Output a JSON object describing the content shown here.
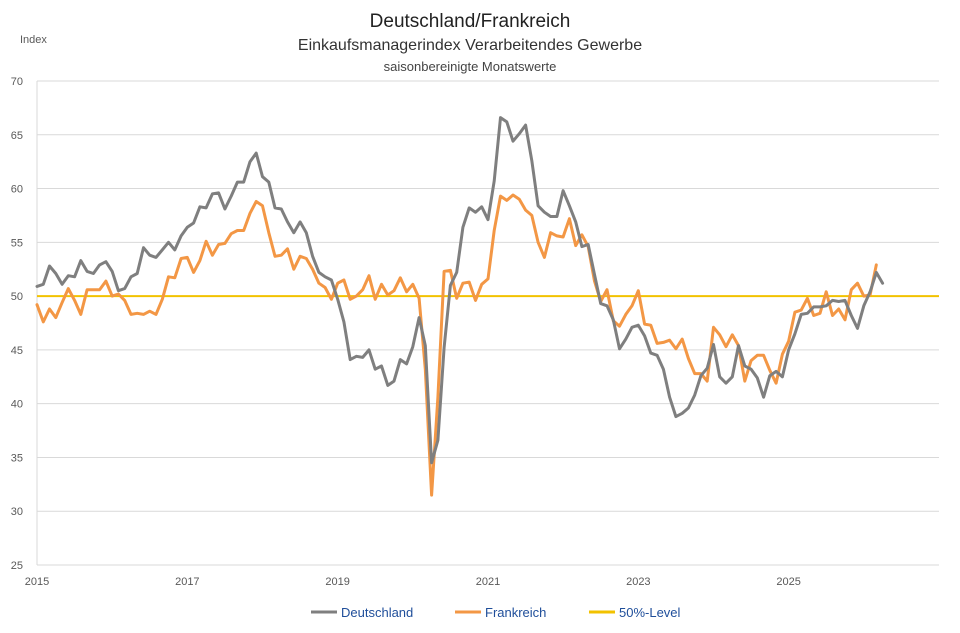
{
  "chart_data": {
    "type": "line",
    "title": "Deutschland/Frankreich",
    "subtitle": "Einkaufsmanagerindex Verarbeitendes Gewerbe",
    "note": "saisonbereinigte Monatswerte",
    "ylabel": "Index",
    "xlabel": "",
    "ylim": [
      25,
      70
    ],
    "yticks": [
      25,
      30,
      35,
      40,
      45,
      50,
      55,
      60,
      65,
      70
    ],
    "xlim": [
      2015.0,
      2027.0
    ],
    "xticks": [
      2015,
      2017,
      2019,
      2021,
      2023,
      2025
    ],
    "xtick_labels": [
      "2015",
      "2017",
      "2019",
      "2021",
      "2023",
      "2025"
    ],
    "grid": true,
    "legend_position": "bottom",
    "start": 2015.0,
    "step": 0.08333,
    "series": [
      {
        "name": "Deutschland",
        "color": "#7f7f7f",
        "values": [
          50.9,
          51.1,
          52.8,
          52.1,
          51.1,
          51.9,
          51.8,
          53.3,
          52.3,
          52.1,
          52.9,
          53.2,
          52.3,
          50.5,
          50.7,
          51.8,
          52.1,
          54.5,
          53.8,
          53.6,
          54.3,
          55.0,
          54.3,
          55.6,
          56.4,
          56.8,
          58.3,
          58.2,
          59.5,
          59.6,
          58.1,
          59.3,
          60.6,
          60.6,
          62.5,
          63.3,
          61.1,
          60.6,
          58.2,
          58.1,
          56.9,
          55.9,
          56.9,
          55.9,
          53.7,
          52.2,
          51.8,
          51.5,
          49.7,
          47.6,
          44.1,
          44.4,
          44.3,
          45.0,
          43.2,
          43.5,
          41.7,
          42.1,
          44.1,
          43.7,
          45.3,
          48.0,
          45.4,
          34.5,
          36.6,
          45.2,
          51.0,
          52.2,
          56.4,
          58.2,
          57.8,
          58.3,
          57.1,
          60.7,
          66.6,
          66.2,
          64.4,
          65.1,
          65.9,
          62.6,
          58.4,
          57.8,
          57.4,
          57.4,
          59.8,
          58.4,
          56.9,
          54.6,
          54.8,
          52.0,
          49.3,
          49.1,
          47.8,
          45.1,
          46.0,
          47.1,
          47.3,
          46.3,
          44.7,
          44.5,
          43.2,
          40.6,
          38.8,
          39.1,
          39.6,
          40.8,
          42.6,
          43.3,
          45.5,
          42.5,
          41.9,
          42.5,
          45.4,
          43.5,
          43.2,
          42.4,
          40.6,
          42.6,
          43.0,
          42.5,
          45.0,
          46.5,
          48.3,
          48.4,
          49.0,
          49.0,
          49.1,
          49.6,
          49.5,
          49.6,
          48.2,
          47.0,
          49.1,
          50.4,
          52.2,
          51.2
        ]
      },
      {
        "name": "Frankreich",
        "color": "#f39745",
        "values": [
          49.2,
          47.6,
          48.8,
          48.0,
          49.4,
          50.7,
          49.6,
          48.3,
          50.6,
          50.6,
          50.6,
          51.4,
          50.0,
          50.2,
          49.6,
          48.3,
          48.4,
          48.3,
          48.6,
          48.3,
          49.7,
          51.8,
          51.7,
          53.5,
          53.6,
          52.2,
          53.3,
          55.1,
          53.8,
          54.8,
          54.9,
          55.8,
          56.1,
          56.1,
          57.7,
          58.8,
          58.4,
          55.9,
          53.7,
          53.8,
          54.4,
          52.5,
          53.7,
          53.5,
          52.5,
          51.2,
          50.8,
          49.7,
          51.2,
          51.5,
          49.7,
          50.0,
          50.6,
          51.9,
          49.7,
          51.1,
          50.1,
          50.5,
          51.7,
          50.4,
          51.1,
          49.8,
          43.2,
          31.5,
          40.6,
          52.3,
          52.4,
          49.8,
          51.2,
          51.3,
          49.6,
          51.1,
          51.6,
          56.1,
          59.3,
          58.9,
          59.4,
          59.0,
          58.0,
          57.5,
          55.0,
          53.6,
          55.9,
          55.6,
          55.5,
          57.2,
          54.7,
          55.7,
          54.6,
          51.4,
          49.5,
          50.6,
          47.7,
          47.2,
          48.3,
          49.1,
          50.5,
          47.4,
          47.3,
          45.6,
          45.7,
          45.9,
          45.1,
          46.0,
          44.2,
          42.8,
          42.8,
          42.1,
          47.1,
          46.4,
          45.3,
          46.4,
          45.4,
          42.1,
          44.0,
          44.5,
          44.5,
          43.1,
          41.9,
          44.6,
          45.8,
          48.5,
          48.7,
          49.8,
          48.2,
          48.4,
          50.4,
          48.2,
          48.8,
          47.8,
          50.6,
          51.2,
          50.0,
          50.1,
          52.9
        ]
      },
      {
        "name": "50%-Level",
        "color": "#f2c200",
        "values": [
          50,
          50
        ]
      }
    ]
  }
}
